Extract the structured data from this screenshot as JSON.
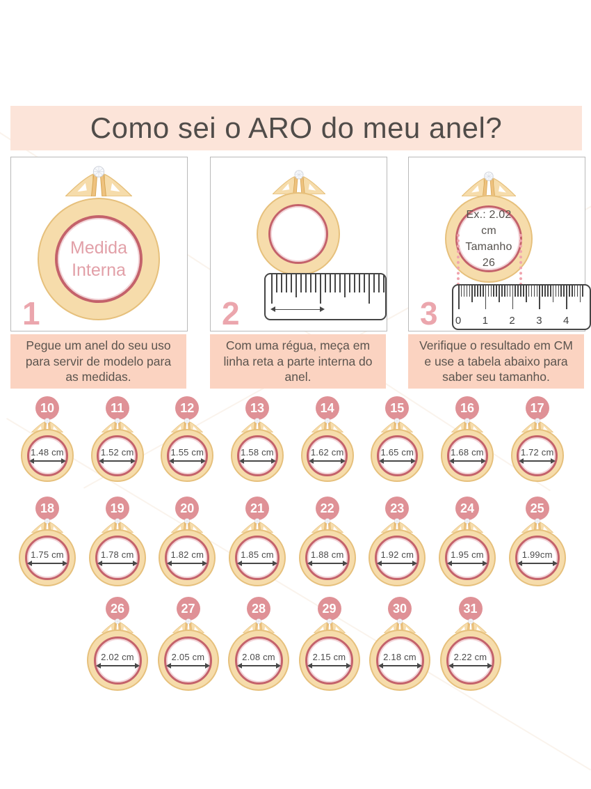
{
  "header": {
    "title": "Como sei o ARO do meu anel?"
  },
  "steps": [
    {
      "number": "1",
      "ring_text_line1": "Medida",
      "ring_text_line2": "Interna",
      "caption": "Pegue um anel do seu uso para servir de modelo para as medidas."
    },
    {
      "number": "2",
      "caption": "Com uma régua, meça em linha reta a parte interna do anel."
    },
    {
      "number": "3",
      "ring_text_line1": "Ex.: 2.02 cm",
      "ring_text_line2": "Tamanho 26",
      "ruler_numbers": [
        "0",
        "1",
        "2",
        "3",
        "4"
      ],
      "caption": "Verifique o resultado em CM e use a tabela abaixo para saber seu tamanho."
    }
  ],
  "size_table": {
    "rows": [
      {
        "items": [
          {
            "aro": "10",
            "inner_diameter": "1.48 cm"
          },
          {
            "aro": "11",
            "inner_diameter": "1.52 cm"
          },
          {
            "aro": "12",
            "inner_diameter": "1.55 cm"
          },
          {
            "aro": "13",
            "inner_diameter": "1.58 cm"
          },
          {
            "aro": "14",
            "inner_diameter": "1.62 cm"
          },
          {
            "aro": "15",
            "inner_diameter": "1.65 cm"
          },
          {
            "aro": "16",
            "inner_diameter": "1.68 cm"
          },
          {
            "aro": "17",
            "inner_diameter": "1.72 cm"
          }
        ]
      },
      {
        "items": [
          {
            "aro": "18",
            "inner_diameter": "1.75 cm"
          },
          {
            "aro": "19",
            "inner_diameter": "1.78 cm"
          },
          {
            "aro": "20",
            "inner_diameter": "1.82 cm"
          },
          {
            "aro": "21",
            "inner_diameter": "1.85 cm"
          },
          {
            "aro": "22",
            "inner_diameter": "1.88 cm"
          },
          {
            "aro": "23",
            "inner_diameter": "1.92 cm"
          },
          {
            "aro": "24",
            "inner_diameter": "1.95 cm"
          },
          {
            "aro": "25",
            "inner_diameter": "1.99cm"
          }
        ]
      },
      {
        "items": [
          {
            "aro": "26",
            "inner_diameter": "2.02 cm"
          },
          {
            "aro": "27",
            "inner_diameter": "2.05 cm"
          },
          {
            "aro": "28",
            "inner_diameter": "2.08 cm"
          },
          {
            "aro": "29",
            "inner_diameter": "2.15 cm"
          },
          {
            "aro": "30",
            "inner_diameter": "2.18 cm"
          },
          {
            "aro": "31",
            "inner_diameter": "2.22 cm"
          }
        ]
      }
    ]
  },
  "colors": {
    "banner_bg": "#fce4d9",
    "caption_bg": "#fbd3c1",
    "badge_bg": "#df9196",
    "step_number": "#eba6ad",
    "ring_band": "#f6dcab",
    "ring_band_stroke": "#e6c07c",
    "ring_inner_outline": "#c4626b",
    "pink_text": "#e2a0a8",
    "dark_text": "#54504c",
    "ruler_ink": "#454545",
    "dotted_pink": "#f0a3ad"
  }
}
